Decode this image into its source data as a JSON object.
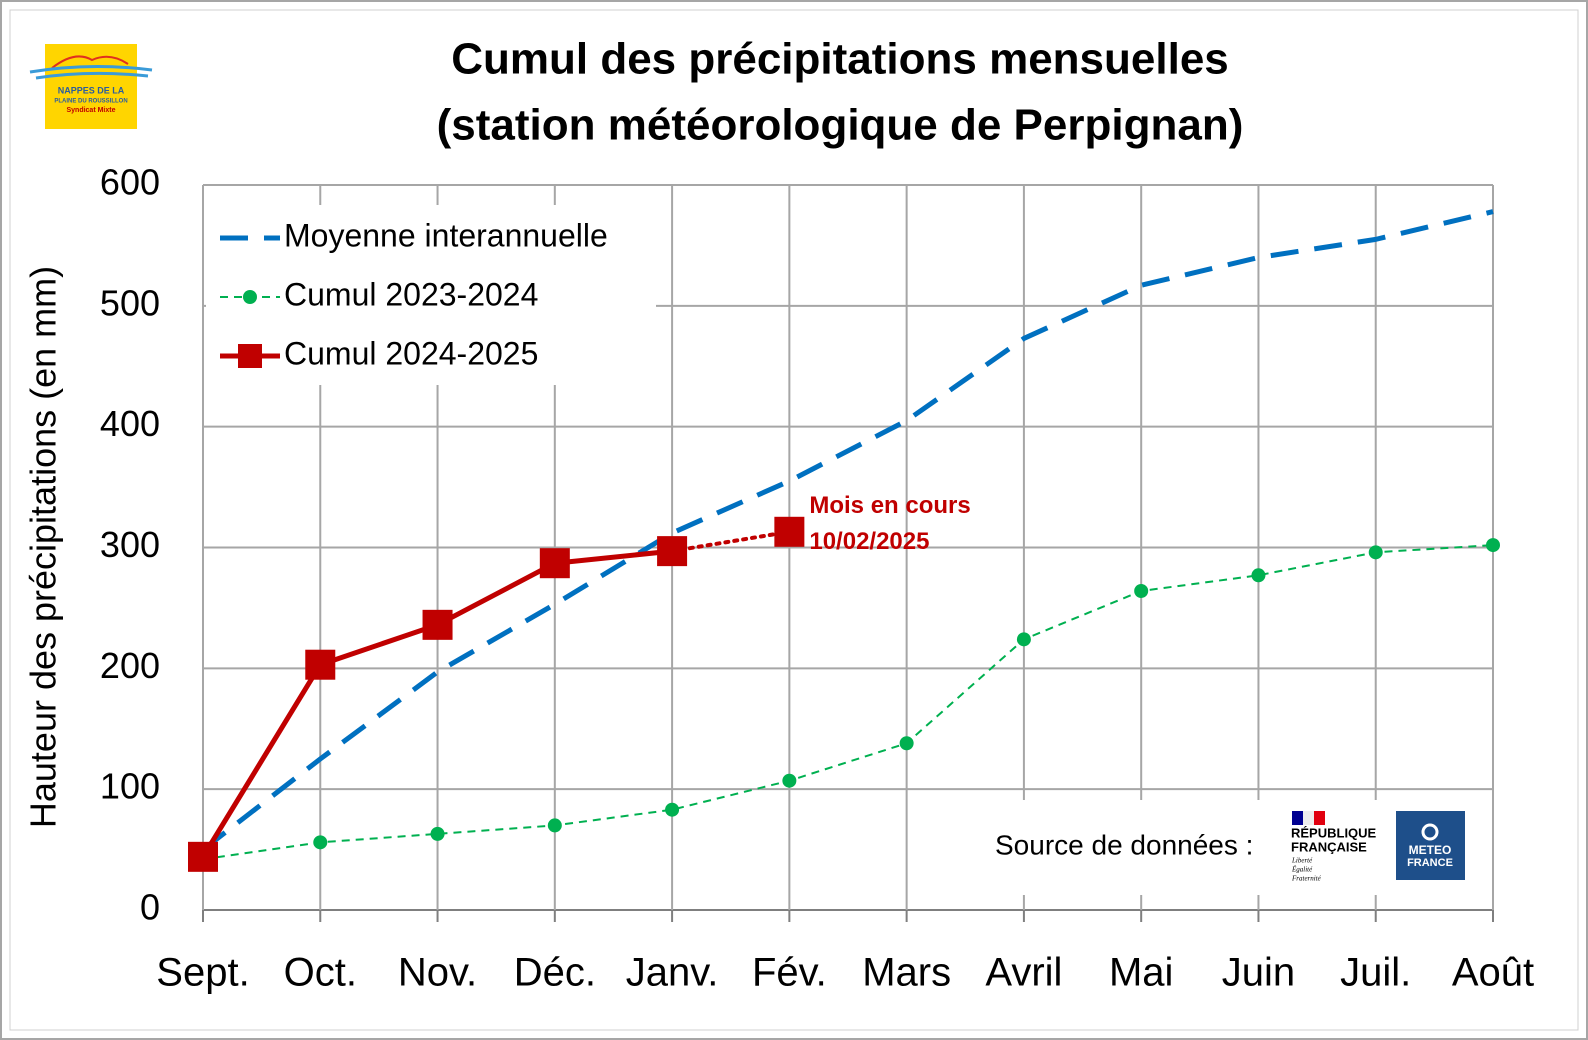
{
  "chart_data": {
    "type": "line",
    "title": [
      "Cumul des précipitations mensuelles",
      "(station météorologique de Perpignan)"
    ],
    "y_label": "Hauteur des précipitations (en mm)",
    "categories": [
      "Sept.",
      "Oct.",
      "Nov.",
      "Déc.",
      "Janv.",
      "Fév.",
      "Mars",
      "Avril",
      "Mai",
      "Juin",
      "Juil.",
      "Août"
    ],
    "series": [
      {
        "name": "Moyenne interannuelle",
        "color": "#0070c0",
        "line_style": "dashed",
        "marker": "none",
        "values": [
          50,
          125,
          197,
          253,
          312,
          355,
          405,
          473,
          517,
          540,
          555,
          578
        ]
      },
      {
        "name": "Cumul 2023-2024",
        "color": "#00b050",
        "line_style": "dashed-thin",
        "marker": "circle",
        "values": [
          42,
          56,
          63,
          70,
          83,
          107,
          138,
          224,
          264,
          277,
          296,
          302
        ]
      },
      {
        "name": "Cumul 2024-2025",
        "color": "#c00000",
        "line_style": "solid",
        "marker": "square",
        "last_segment_style": "dotted",
        "values": [
          44,
          203,
          236,
          287,
          297,
          313,
          null,
          null,
          null,
          null,
          null,
          null
        ]
      }
    ],
    "ylim": [
      0,
      600
    ],
    "yticks": [
      0,
      100,
      200,
      300,
      400,
      500,
      600
    ],
    "grid": true,
    "legend": "top-left",
    "annotation": [
      "Mois en cours",
      "10/02/2025"
    ],
    "source": {
      "label": "Source de données :",
      "republique": [
        "RÉPUBLIQUE",
        "FRANÇAISE"
      ],
      "motto": [
        "Liberté",
        "Égalité",
        "Fraternité"
      ],
      "meteo": [
        "METEO",
        "FRANCE"
      ]
    },
    "logo": [
      "NAPPES DE LA",
      "PLAINE DU ROUSSILLON",
      "Syndicat Mixte"
    ]
  }
}
